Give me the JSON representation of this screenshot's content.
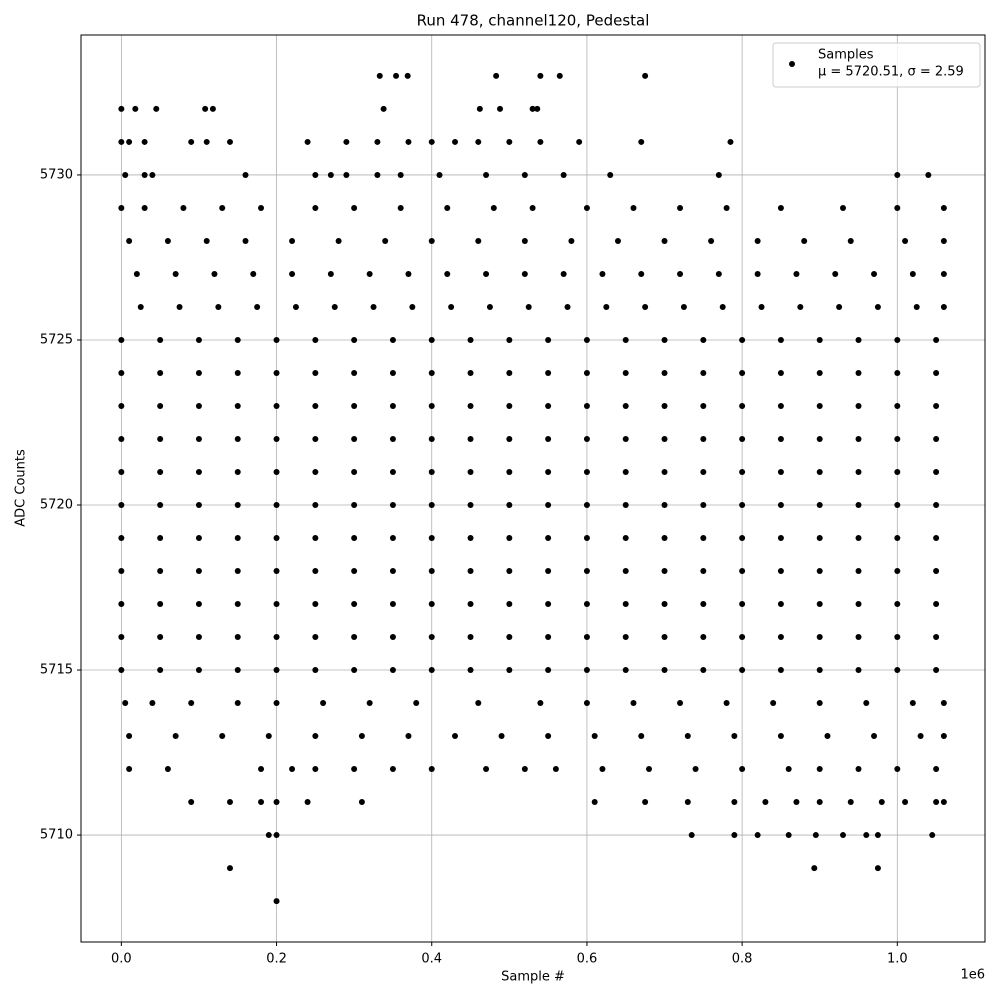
{
  "chart_data": {
    "type": "scatter",
    "title": "Run 478, channel120, Pedestal",
    "x_label": "Sample #",
    "y_label": "ADC Counts",
    "x_offset_label": "1e6",
    "legend_note": "μ = 5720.51, σ = 2.59",
    "legend_position": "upper right",
    "grid": true,
    "xlim": [
      -52000,
      1113000
    ],
    "ylim": [
      5706.76,
      5734.24
    ],
    "xticks": [
      {
        "value": 0,
        "label": "0.0"
      },
      {
        "value": 200000,
        "label": "0.2"
      },
      {
        "value": 400000,
        "label": "0.4"
      },
      {
        "value": 600000,
        "label": "0.6"
      },
      {
        "value": 800000,
        "label": "0.8"
      },
      {
        "value": 1000000,
        "label": "1.0"
      }
    ],
    "yticks": [
      5710,
      5715,
      5720,
      5725,
      5730
    ],
    "series": [
      {
        "name": "Samples",
        "color": "#000000",
        "x": [
          333000,
          354000,
          369000,
          483000,
          540000,
          565000,
          675000,
          0,
          18000,
          45000,
          108000,
          118000,
          338000,
          462000,
          488000,
          530000,
          536000,
          0,
          10000,
          30000,
          90000,
          110000,
          140000,
          240000,
          290000,
          330000,
          370000,
          400000,
          430000,
          460000,
          500000,
          540000,
          590000,
          670000,
          785000,
          5000,
          30000,
          40000,
          160000,
          250000,
          270000,
          290000,
          330000,
          360000,
          410000,
          470000,
          520000,
          570000,
          630000,
          770000,
          1000000,
          1040000,
          0,
          30000,
          80000,
          130000,
          180000,
          250000,
          300000,
          360000,
          420000,
          480000,
          530000,
          600000,
          660000,
          720000,
          780000,
          850000,
          930000,
          1000000,
          1060000,
          10000,
          60000,
          110000,
          160000,
          220000,
          280000,
          340000,
          400000,
          460000,
          520000,
          580000,
          640000,
          700000,
          760000,
          820000,
          880000,
          940000,
          1010000,
          1060000,
          20000,
          70000,
          120000,
          170000,
          220000,
          270000,
          320000,
          370000,
          420000,
          470000,
          520000,
          570000,
          620000,
          670000,
          720000,
          770000,
          820000,
          870000,
          920000,
          970000,
          1020000,
          1060000,
          25000,
          75000,
          125000,
          175000,
          225000,
          275000,
          325000,
          375000,
          425000,
          475000,
          525000,
          575000,
          625000,
          675000,
          725000,
          775000,
          825000,
          875000,
          925000,
          975000,
          1025000,
          1060000,
          0,
          50000,
          100000,
          150000,
          200000,
          250000,
          300000,
          350000,
          400000,
          450000,
          500000,
          550000,
          600000,
          650000,
          700000,
          750000,
          800000,
          850000,
          900000,
          950000,
          1000000,
          1050000,
          0,
          50000,
          100000,
          150000,
          200000,
          250000,
          300000,
          350000,
          400000,
          450000,
          500000,
          550000,
          600000,
          650000,
          700000,
          750000,
          800000,
          850000,
          900000,
          950000,
          1000000,
          1050000,
          0,
          50000,
          100000,
          150000,
          200000,
          250000,
          300000,
          350000,
          400000,
          450000,
          500000,
          550000,
          600000,
          650000,
          700000,
          750000,
          800000,
          850000,
          900000,
          950000,
          1000000,
          1050000,
          0,
          50000,
          100000,
          150000,
          200000,
          250000,
          300000,
          350000,
          400000,
          450000,
          500000,
          550000,
          600000,
          650000,
          700000,
          750000,
          800000,
          850000,
          900000,
          950000,
          1000000,
          1050000,
          0,
          50000,
          100000,
          150000,
          200000,
          250000,
          300000,
          350000,
          400000,
          450000,
          500000,
          550000,
          600000,
          650000,
          700000,
          750000,
          800000,
          850000,
          900000,
          950000,
          1000000,
          1050000,
          0,
          50000,
          100000,
          150000,
          200000,
          250000,
          300000,
          350000,
          400000,
          450000,
          500000,
          550000,
          600000,
          650000,
          700000,
          750000,
          800000,
          850000,
          900000,
          950000,
          1000000,
          1050000,
          0,
          50000,
          100000,
          150000,
          200000,
          250000,
          300000,
          350000,
          400000,
          450000,
          500000,
          550000,
          600000,
          650000,
          700000,
          750000,
          800000,
          850000,
          900000,
          950000,
          1000000,
          1050000,
          0,
          50000,
          100000,
          150000,
          200000,
          250000,
          300000,
          350000,
          400000,
          450000,
          500000,
          550000,
          600000,
          650000,
          700000,
          750000,
          800000,
          850000,
          900000,
          950000,
          1000000,
          1050000,
          0,
          50000,
          100000,
          150000,
          200000,
          250000,
          300000,
          350000,
          400000,
          450000,
          500000,
          550000,
          600000,
          650000,
          700000,
          750000,
          800000,
          850000,
          900000,
          950000,
          1000000,
          1050000,
          0,
          50000,
          100000,
          150000,
          200000,
          250000,
          300000,
          350000,
          400000,
          450000,
          500000,
          550000,
          600000,
          650000,
          700000,
          750000,
          800000,
          850000,
          900000,
          950000,
          1000000,
          1050000,
          0,
          50000,
          100000,
          150000,
          200000,
          250000,
          300000,
          350000,
          400000,
          450000,
          500000,
          550000,
          600000,
          650000,
          700000,
          750000,
          800000,
          850000,
          900000,
          950000,
          1000000,
          1050000,
          5000,
          40000,
          90000,
          150000,
          200000,
          260000,
          320000,
          380000,
          460000,
          540000,
          600000,
          660000,
          720000,
          780000,
          840000,
          900000,
          960000,
          1020000,
          1060000,
          10000,
          70000,
          130000,
          190000,
          250000,
          310000,
          370000,
          430000,
          490000,
          550000,
          610000,
          670000,
          730000,
          790000,
          850000,
          910000,
          970000,
          1030000,
          1060000,
          10000,
          60000,
          180000,
          220000,
          250000,
          300000,
          350000,
          400000,
          470000,
          520000,
          560000,
          620000,
          680000,
          740000,
          800000,
          860000,
          900000,
          950000,
          1000000,
          1050000,
          90000,
          140000,
          180000,
          200000,
          240000,
          310000,
          610000,
          675000,
          730000,
          790000,
          830000,
          870000,
          900000,
          940000,
          980000,
          1010000,
          1050000,
          1060000,
          190000,
          200000,
          735000,
          790000,
          820000,
          860000,
          895000,
          930000,
          960000,
          975000,
          1045000,
          140000,
          893000,
          975000,
          200000
        ],
        "values": [
          5733,
          5733,
          5733,
          5733,
          5733,
          5733,
          5733,
          5732,
          5732,
          5732,
          5732,
          5732,
          5732,
          5732,
          5732,
          5732,
          5732,
          5731,
          5731,
          5731,
          5731,
          5731,
          5731,
          5731,
          5731,
          5731,
          5731,
          5731,
          5731,
          5731,
          5731,
          5731,
          5731,
          5731,
          5731,
          5730,
          5730,
          5730,
          5730,
          5730,
          5730,
          5730,
          5730,
          5730,
          5730,
          5730,
          5730,
          5730,
          5730,
          5730,
          5730,
          5730,
          5729,
          5729,
          5729,
          5729,
          5729,
          5729,
          5729,
          5729,
          5729,
          5729,
          5729,
          5729,
          5729,
          5729,
          5729,
          5729,
          5729,
          5729,
          5729,
          5728,
          5728,
          5728,
          5728,
          5728,
          5728,
          5728,
          5728,
          5728,
          5728,
          5728,
          5728,
          5728,
          5728,
          5728,
          5728,
          5728,
          5728,
          5728,
          5727,
          5727,
          5727,
          5727,
          5727,
          5727,
          5727,
          5727,
          5727,
          5727,
          5727,
          5727,
          5727,
          5727,
          5727,
          5727,
          5727,
          5727,
          5727,
          5727,
          5727,
          5727,
          5726,
          5726,
          5726,
          5726,
          5726,
          5726,
          5726,
          5726,
          5726,
          5726,
          5726,
          5726,
          5726,
          5726,
          5726,
          5726,
          5726,
          5726,
          5726,
          5726,
          5726,
          5726,
          5725,
          5725,
          5725,
          5725,
          5725,
          5725,
          5725,
          5725,
          5725,
          5725,
          5725,
          5725,
          5725,
          5725,
          5725,
          5725,
          5725,
          5725,
          5725,
          5725,
          5725,
          5725,
          5724,
          5724,
          5724,
          5724,
          5724,
          5724,
          5724,
          5724,
          5724,
          5724,
          5724,
          5724,
          5724,
          5724,
          5724,
          5724,
          5724,
          5724,
          5724,
          5724,
          5724,
          5724,
          5723,
          5723,
          5723,
          5723,
          5723,
          5723,
          5723,
          5723,
          5723,
          5723,
          5723,
          5723,
          5723,
          5723,
          5723,
          5723,
          5723,
          5723,
          5723,
          5723,
          5723,
          5723,
          5722,
          5722,
          5722,
          5722,
          5722,
          5722,
          5722,
          5722,
          5722,
          5722,
          5722,
          5722,
          5722,
          5722,
          5722,
          5722,
          5722,
          5722,
          5722,
          5722,
          5722,
          5722,
          5721,
          5721,
          5721,
          5721,
          5721,
          5721,
          5721,
          5721,
          5721,
          5721,
          5721,
          5721,
          5721,
          5721,
          5721,
          5721,
          5721,
          5721,
          5721,
          5721,
          5721,
          5721,
          5720,
          5720,
          5720,
          5720,
          5720,
          5720,
          5720,
          5720,
          5720,
          5720,
          5720,
          5720,
          5720,
          5720,
          5720,
          5720,
          5720,
          5720,
          5720,
          5720,
          5720,
          5720,
          5719,
          5719,
          5719,
          5719,
          5719,
          5719,
          5719,
          5719,
          5719,
          5719,
          5719,
          5719,
          5719,
          5719,
          5719,
          5719,
          5719,
          5719,
          5719,
          5719,
          5719,
          5719,
          5718,
          5718,
          5718,
          5718,
          5718,
          5718,
          5718,
          5718,
          5718,
          5718,
          5718,
          5718,
          5718,
          5718,
          5718,
          5718,
          5718,
          5718,
          5718,
          5718,
          5718,
          5718,
          5717,
          5717,
          5717,
          5717,
          5717,
          5717,
          5717,
          5717,
          5717,
          5717,
          5717,
          5717,
          5717,
          5717,
          5717,
          5717,
          5717,
          5717,
          5717,
          5717,
          5717,
          5717,
          5716,
          5716,
          5716,
          5716,
          5716,
          5716,
          5716,
          5716,
          5716,
          5716,
          5716,
          5716,
          5716,
          5716,
          5716,
          5716,
          5716,
          5716,
          5716,
          5716,
          5716,
          5716,
          5715,
          5715,
          5715,
          5715,
          5715,
          5715,
          5715,
          5715,
          5715,
          5715,
          5715,
          5715,
          5715,
          5715,
          5715,
          5715,
          5715,
          5715,
          5715,
          5715,
          5715,
          5715,
          5714,
          5714,
          5714,
          5714,
          5714,
          5714,
          5714,
          5714,
          5714,
          5714,
          5714,
          5714,
          5714,
          5714,
          5714,
          5714,
          5714,
          5714,
          5714,
          5713,
          5713,
          5713,
          5713,
          5713,
          5713,
          5713,
          5713,
          5713,
          5713,
          5713,
          5713,
          5713,
          5713,
          5713,
          5713,
          5713,
          5713,
          5713,
          5712,
          5712,
          5712,
          5712,
          5712,
          5712,
          5712,
          5712,
          5712,
          5712,
          5712,
          5712,
          5712,
          5712,
          5712,
          5712,
          5712,
          5712,
          5712,
          5712,
          5711,
          5711,
          5711,
          5711,
          5711,
          5711,
          5711,
          5711,
          5711,
          5711,
          5711,
          5711,
          5711,
          5711,
          5711,
          5711,
          5711,
          5711,
          5710,
          5710,
          5710,
          5710,
          5710,
          5710,
          5710,
          5710,
          5710,
          5710,
          5710,
          5709,
          5709,
          5709,
          5708
        ]
      }
    ]
  }
}
